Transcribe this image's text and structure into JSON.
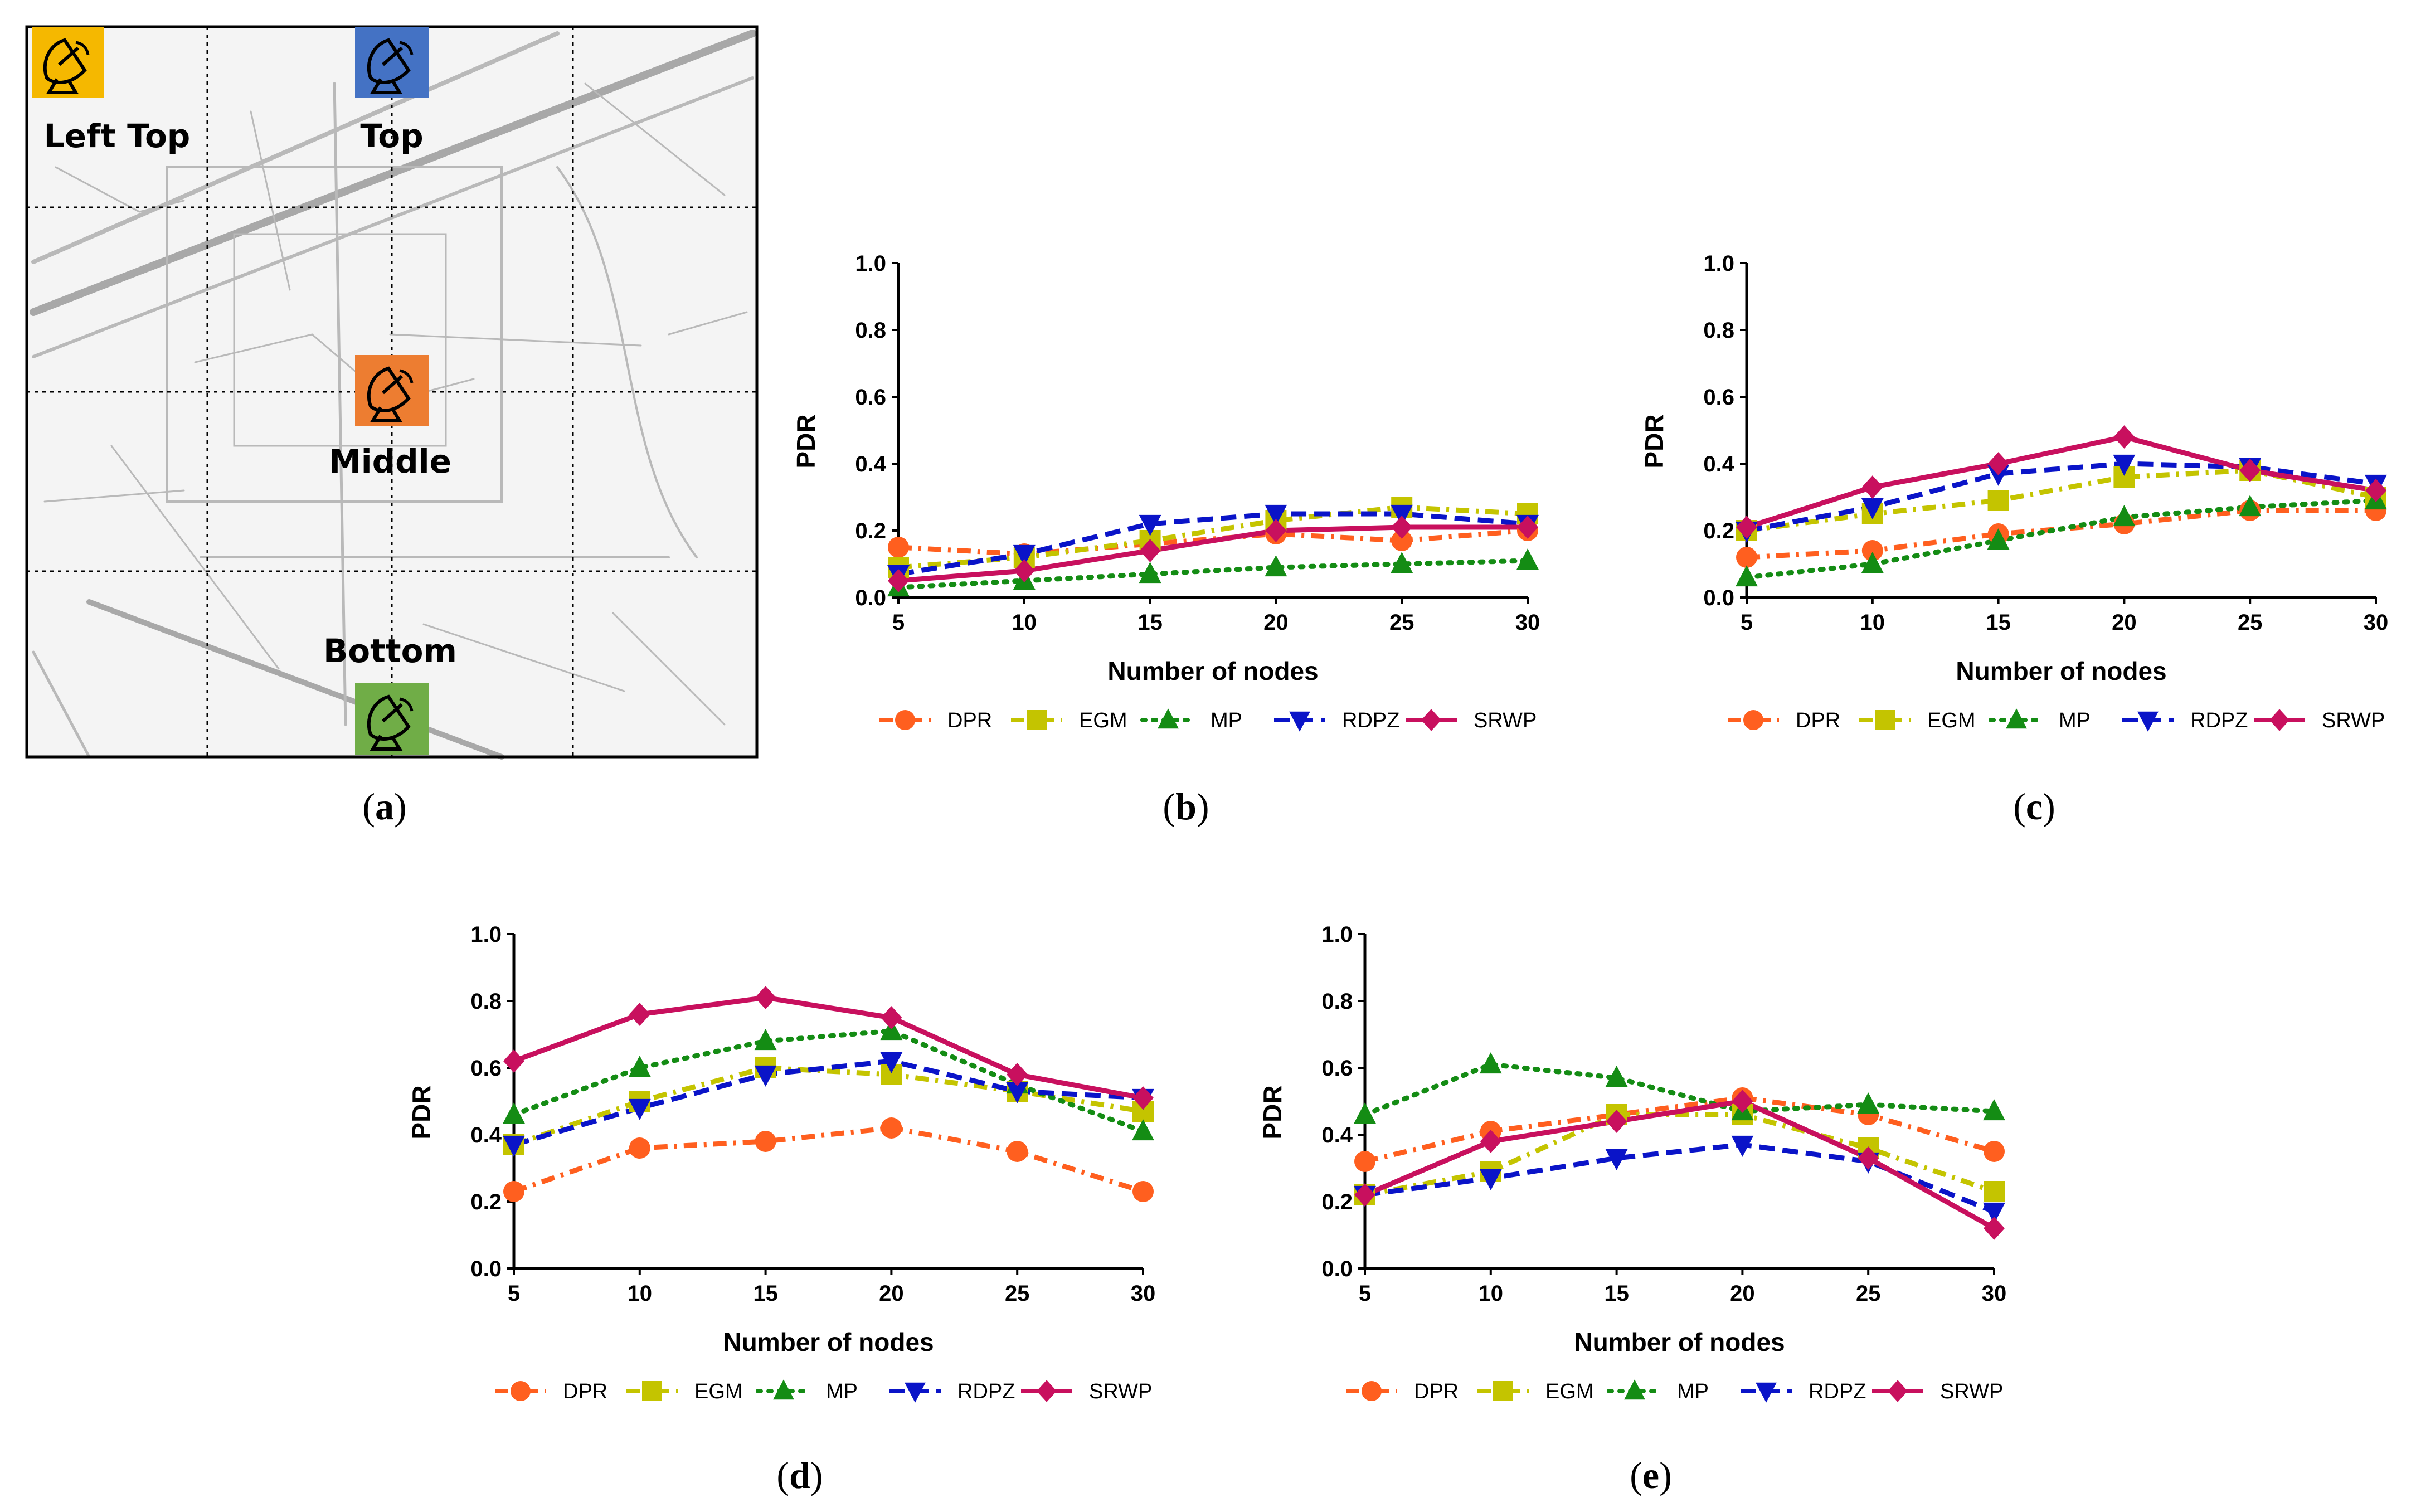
{
  "figure": {
    "captions": [
      "a",
      "b",
      "c",
      "d",
      "e"
    ]
  },
  "map_panel": {
    "stations": [
      {
        "label": "Left Top",
        "color": "#f5b800",
        "icon": "satellite-dish-icon"
      },
      {
        "label": "Top",
        "color": "#4472c4",
        "icon": "satellite-dish-icon"
      },
      {
        "label": "Middle",
        "color": "#ed7d31",
        "icon": "satellite-dish-icon"
      },
      {
        "label": "Bottom",
        "color": "#70ad47",
        "icon": "satellite-dish-icon"
      }
    ]
  },
  "series_styles": [
    {
      "name": "DPR",
      "color": "#ff5f1f",
      "marker": "circle",
      "dash": "dashdot"
    },
    {
      "name": "EGM",
      "color": "#c4c400",
      "marker": "square",
      "dash": "dashdot"
    },
    {
      "name": "MP",
      "color": "#148c14",
      "marker": "triangle-up",
      "dash": "dotted"
    },
    {
      "name": "RDPZ",
      "color": "#0a14c8",
      "marker": "triangle-down",
      "dash": "dashed"
    },
    {
      "name": "SRWP",
      "color": "#c8105e",
      "marker": "diamond",
      "dash": "solid"
    }
  ],
  "chart_data": [
    {
      "panel": "b",
      "type": "line",
      "xlabel": "Number of nodes",
      "ylabel": "PDR",
      "x": [
        5,
        10,
        15,
        20,
        25,
        30
      ],
      "xticks": [
        "5",
        "10",
        "15",
        "20",
        "25",
        "30"
      ],
      "yticks": [
        "0.0",
        "0.2",
        "0.4",
        "0.6",
        "0.8",
        "1.0"
      ],
      "ylim": [
        0,
        1
      ],
      "legend": "bottom",
      "series": [
        {
          "name": "DPR",
          "values": [
            0.15,
            0.13,
            0.16,
            0.19,
            0.17,
            0.2
          ]
        },
        {
          "name": "EGM",
          "values": [
            0.09,
            0.12,
            0.17,
            0.23,
            0.27,
            0.25
          ]
        },
        {
          "name": "MP",
          "values": [
            0.03,
            0.05,
            0.07,
            0.09,
            0.1,
            0.11
          ]
        },
        {
          "name": "RDPZ",
          "values": [
            0.07,
            0.13,
            0.22,
            0.25,
            0.25,
            0.22
          ]
        },
        {
          "name": "SRWP",
          "values": [
            0.05,
            0.08,
            0.14,
            0.2,
            0.21,
            0.21
          ]
        }
      ]
    },
    {
      "panel": "c",
      "type": "line",
      "xlabel": "Number of nodes",
      "ylabel": "PDR",
      "x": [
        5,
        10,
        15,
        20,
        25,
        30
      ],
      "xticks": [
        "5",
        "10",
        "15",
        "20",
        "25",
        "30"
      ],
      "yticks": [
        "0.0",
        "0.2",
        "0.4",
        "0.6",
        "0.8",
        "1.0"
      ],
      "ylim": [
        0,
        1
      ],
      "legend": "bottom",
      "series": [
        {
          "name": "DPR",
          "values": [
            0.12,
            0.14,
            0.19,
            0.22,
            0.26,
            0.26
          ]
        },
        {
          "name": "EGM",
          "values": [
            0.2,
            0.25,
            0.29,
            0.36,
            0.38,
            0.3
          ]
        },
        {
          "name": "MP",
          "values": [
            0.06,
            0.1,
            0.17,
            0.24,
            0.27,
            0.29
          ]
        },
        {
          "name": "RDPZ",
          "values": [
            0.2,
            0.27,
            0.37,
            0.4,
            0.39,
            0.34
          ]
        },
        {
          "name": "SRWP",
          "values": [
            0.21,
            0.33,
            0.4,
            0.48,
            0.38,
            0.32
          ]
        }
      ]
    },
    {
      "panel": "d",
      "type": "line",
      "xlabel": "Number of nodes",
      "ylabel": "PDR",
      "x": [
        5,
        10,
        15,
        20,
        25,
        30
      ],
      "xticks": [
        "5",
        "10",
        "15",
        "20",
        "25",
        "30"
      ],
      "yticks": [
        "0.0",
        "0.2",
        "0.4",
        "0.6",
        "0.8",
        "1.0"
      ],
      "ylim": [
        0,
        1
      ],
      "legend": "bottom",
      "series": [
        {
          "name": "DPR",
          "values": [
            0.23,
            0.36,
            0.38,
            0.42,
            0.35,
            0.23
          ]
        },
        {
          "name": "EGM",
          "values": [
            0.37,
            0.5,
            0.6,
            0.58,
            0.53,
            0.47
          ]
        },
        {
          "name": "MP",
          "values": [
            0.46,
            0.6,
            0.68,
            0.71,
            0.55,
            0.41
          ]
        },
        {
          "name": "RDPZ",
          "values": [
            0.37,
            0.48,
            0.58,
            0.62,
            0.53,
            0.51
          ]
        },
        {
          "name": "SRWP",
          "values": [
            0.62,
            0.76,
            0.81,
            0.75,
            0.58,
            0.51
          ]
        }
      ]
    },
    {
      "panel": "e",
      "type": "line",
      "xlabel": "Number of nodes",
      "ylabel": "PDR",
      "x": [
        5,
        10,
        15,
        20,
        25,
        30
      ],
      "xticks": [
        "5",
        "10",
        "15",
        "20",
        "25",
        "30"
      ],
      "yticks": [
        "0.0",
        "0.2",
        "0.4",
        "0.6",
        "0.8",
        "1.0"
      ],
      "ylim": [
        0,
        1
      ],
      "legend": "bottom",
      "series": [
        {
          "name": "DPR",
          "values": [
            0.32,
            0.41,
            0.46,
            0.51,
            0.46,
            0.35
          ]
        },
        {
          "name": "EGM",
          "values": [
            0.22,
            0.29,
            0.46,
            0.46,
            0.36,
            0.23
          ]
        },
        {
          "name": "MP",
          "values": [
            0.46,
            0.61,
            0.57,
            0.47,
            0.49,
            0.47
          ]
        },
        {
          "name": "RDPZ",
          "values": [
            0.22,
            0.27,
            0.33,
            0.37,
            0.32,
            0.17
          ]
        },
        {
          "name": "SRWP",
          "values": [
            0.22,
            0.38,
            0.44,
            0.5,
            0.33,
            0.12
          ]
        }
      ]
    }
  ]
}
